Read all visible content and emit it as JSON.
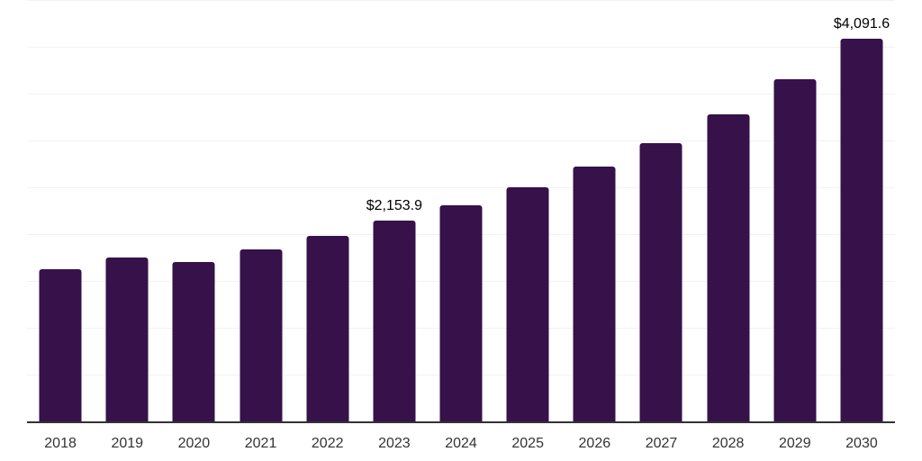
{
  "colors": {
    "background": "#ffffff",
    "bar": "#36114a",
    "gridline": "#f2f2f2",
    "axis_line": "#333333",
    "tick_label": "#333333",
    "data_label": "#000000"
  },
  "chart_data": {
    "type": "bar",
    "title": "",
    "xlabel": "",
    "ylabel": "",
    "categories": [
      "2018",
      "2019",
      "2020",
      "2021",
      "2022",
      "2023",
      "2024",
      "2025",
      "2026",
      "2027",
      "2028",
      "2029",
      "2030"
    ],
    "values": [
      1630,
      1755,
      1710,
      1845,
      1990,
      2153.9,
      2315,
      2505,
      2735,
      2985,
      3285,
      3660,
      4091.6
    ],
    "data_labels": [
      "",
      "",
      "",
      "",
      "",
      "$2,153.9",
      "",
      "",
      "",
      "",
      "",
      "",
      "$4,091.6"
    ],
    "ylim": [
      0,
      4500
    ],
    "grid_step": 500,
    "grid": true,
    "y_tick_labels_visible": false,
    "legend": false
  }
}
